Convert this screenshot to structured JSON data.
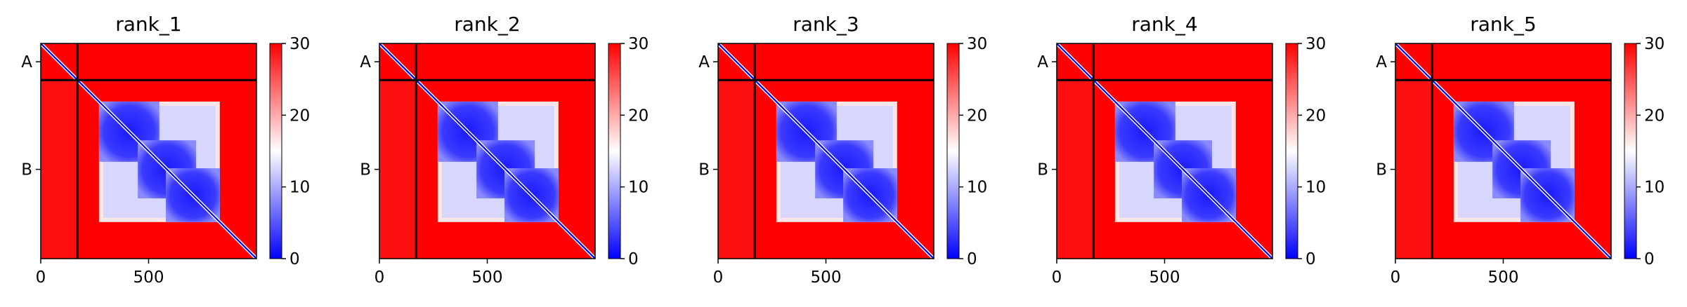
{
  "chart_data": {
    "type": "heatmap",
    "panels": [
      {
        "title": "rank_1"
      },
      {
        "title": "rank_2"
      },
      {
        "title": "rank_3"
      },
      {
        "title": "rank_4"
      },
      {
        "title": "rank_5"
      }
    ],
    "x_ticks": [
      {
        "value": 0,
        "label": "0"
      },
      {
        "value": 500,
        "label": "500"
      }
    ],
    "x_range": [
      0,
      1000
    ],
    "chain_labels": [
      "A",
      "B"
    ],
    "chain_boundaries": [
      0,
      170,
      1000
    ],
    "diagonal_blocks": [
      {
        "start": 270,
        "end": 830,
        "value": 6
      },
      {
        "start": 270,
        "end": 550,
        "value": 4
      },
      {
        "start": 450,
        "end": 720,
        "value": 4
      },
      {
        "start": 580,
        "end": 830,
        "value": 4
      }
    ],
    "colorbar": {
      "min": 0,
      "max": 30,
      "ticks": [
        {
          "value": 0,
          "label": "0"
        },
        {
          "value": 10,
          "label": "10"
        },
        {
          "value": 20,
          "label": "20"
        },
        {
          "value": 30,
          "label": "30"
        }
      ],
      "colors": [
        "#0000ff",
        "#ffffff",
        "#ff0000"
      ]
    }
  }
}
